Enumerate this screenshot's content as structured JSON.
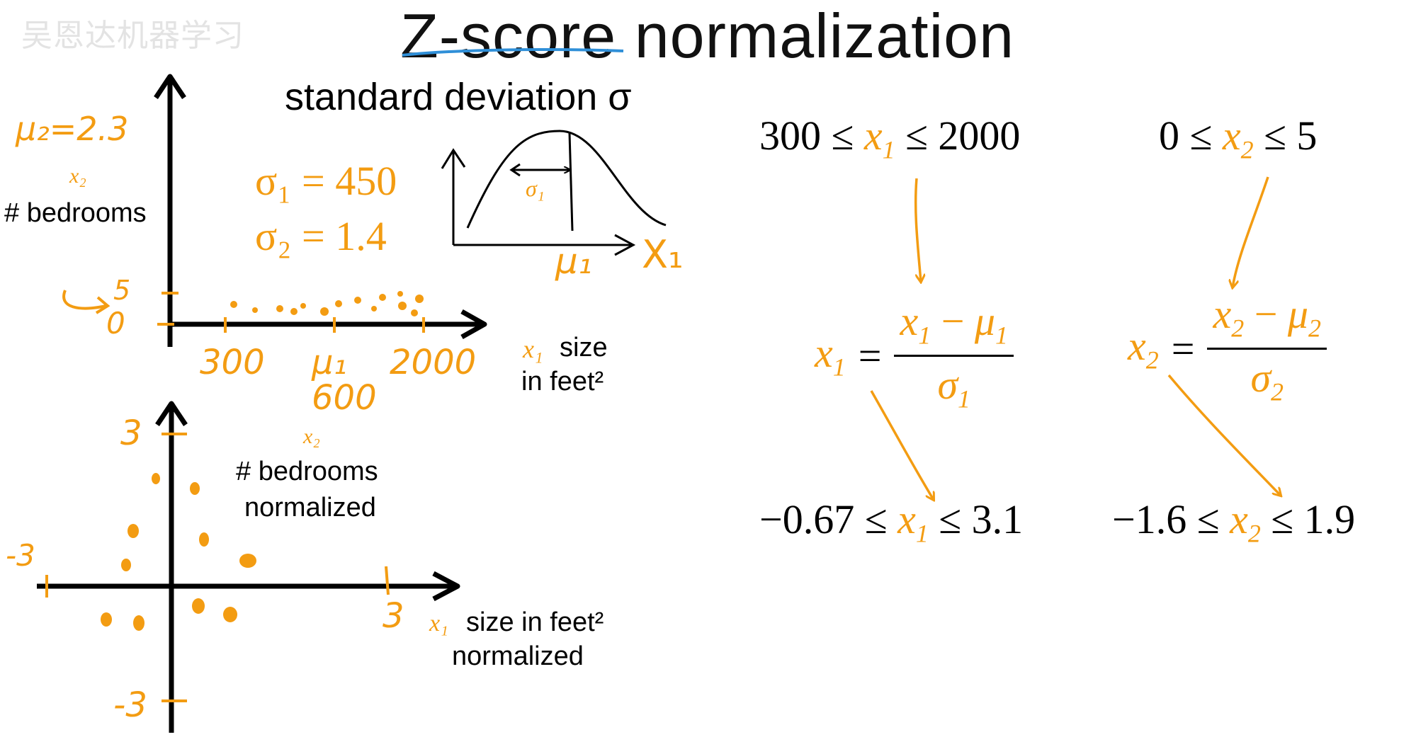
{
  "watermark": "吴恩达机器学习",
  "title": "Z-score normalization",
  "top_plot": {
    "mu2_label": "μ₂=2.3",
    "y_var": "x₂",
    "y_label": "# bedrooms",
    "y_ticks": [
      "5",
      "0"
    ],
    "x_var": "x₁",
    "x_label_line1": "size",
    "x_label_line2": "in feet²",
    "x_ticks": [
      "300",
      "μ₁",
      "2000"
    ],
    "mu1_value": "600"
  },
  "std_dev": {
    "heading": "standard deviation σ",
    "sigma1": "σ₁ = 450",
    "sigma2": "σ₂ = 1.4",
    "curve_sigma_label": "σ₁",
    "curve_mu_label": "μ₁",
    "curve_x_label": "X₁"
  },
  "bottom_plot": {
    "y_var": "x₂",
    "y_label_line1": "# bedrooms",
    "y_label_line2": "normalized",
    "y_ticks": [
      "3",
      "-3"
    ],
    "x_ticks": [
      "-3",
      "3"
    ],
    "x_var": "x₁",
    "x_label_line1": "size in feet²",
    "x_label_line2": "normalized"
  },
  "equations": {
    "range_x1": {
      "low": "300",
      "le": "≤",
      "var": "x",
      "sub": "1",
      "high": "2000"
    },
    "range_x2": {
      "low": "0",
      "le": "≤",
      "var": "x",
      "sub": "2",
      "high": "5"
    },
    "formula_x1": {
      "lhs": "x",
      "lhs_sub": "1",
      "eq": "=",
      "num": "x",
      "num_sub": "1",
      "minus": " − ",
      "mu": "μ",
      "mu_sub": "1",
      "den": "σ",
      "den_sub": "1"
    },
    "formula_x2": {
      "lhs": "x",
      "lhs_sub": "2",
      "eq": "=",
      "num": "x",
      "num_sub": "2",
      "minus": " − ",
      "mu": "μ",
      "mu_sub": "2",
      "den": "σ",
      "den_sub": "2"
    },
    "result_x1": {
      "low": "−0.67",
      "le": "≤",
      "var": "x",
      "sub": "1",
      "high": "3.1"
    },
    "result_x2": {
      "low": "−1.6",
      "le": "≤",
      "var": "x",
      "sub": "2",
      "high": "1.9"
    }
  },
  "colors": {
    "accent": "#f39c12",
    "ink": "#000000",
    "underline": "#2f8fd8"
  }
}
